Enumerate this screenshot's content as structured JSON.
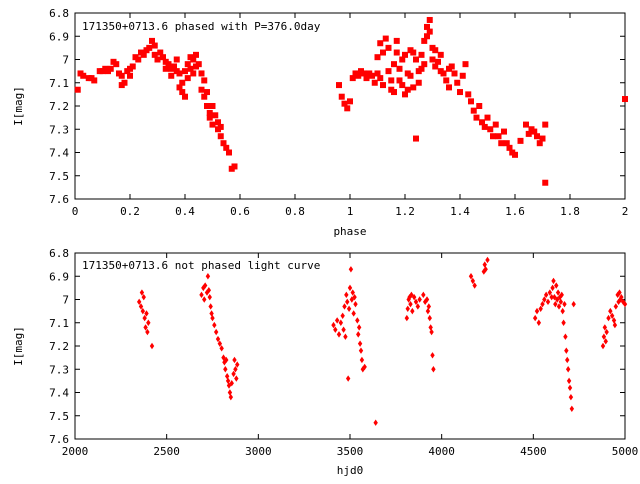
{
  "colors": {
    "points": "#ff0000",
    "axes": "#000000",
    "background": "#ffffff"
  },
  "chart_data": [
    {
      "type": "scatter",
      "title": "171350+0713.6 phased with P=376.0day",
      "xlabel": "phase",
      "ylabel": "I[mag]",
      "xlim": [
        0,
        2
      ],
      "ylim": [
        7.6,
        6.8
      ],
      "y_inverted": true,
      "xticks": [
        "0",
        "0.2",
        "0.4",
        "0.6",
        "0.8",
        "1",
        "1.2",
        "1.4",
        "1.6",
        "1.8",
        "2"
      ],
      "yticks": [
        "6.8",
        "6.9",
        "7",
        "7.1",
        "7.2",
        "7.3",
        "7.4",
        "7.5",
        "7.6"
      ],
      "grid": false,
      "marker": "filled-square",
      "points": [
        [
          0.01,
          7.13
        ],
        [
          0.02,
          7.06
        ],
        [
          0.03,
          7.07
        ],
        [
          0.05,
          7.08
        ],
        [
          0.06,
          7.08
        ],
        [
          0.07,
          7.09
        ],
        [
          0.09,
          7.05
        ],
        [
          0.1,
          7.05
        ],
        [
          0.11,
          7.04
        ],
        [
          0.12,
          7.05
        ],
        [
          0.13,
          7.04
        ],
        [
          0.14,
          7.01
        ],
        [
          0.15,
          7.02
        ],
        [
          0.16,
          7.06
        ],
        [
          0.17,
          7.07
        ],
        [
          0.17,
          7.11
        ],
        [
          0.18,
          7.1
        ],
        [
          0.19,
          7.05
        ],
        [
          0.2,
          7.04
        ],
        [
          0.2,
          7.07
        ],
        [
          0.21,
          7.03
        ],
        [
          0.22,
          6.99
        ],
        [
          0.23,
          7.0
        ],
        [
          0.24,
          6.97
        ],
        [
          0.25,
          6.98
        ],
        [
          0.26,
          6.96
        ],
        [
          0.27,
          6.95
        ],
        [
          0.28,
          6.92
        ],
        [
          0.29,
          6.94
        ],
        [
          0.29,
          6.98
        ],
        [
          0.3,
          7.0
        ],
        [
          0.31,
          6.97
        ],
        [
          0.32,
          6.99
        ],
        [
          0.33,
          7.01
        ],
        [
          0.33,
          7.04
        ],
        [
          0.34,
          7.02
        ],
        [
          0.35,
          7.04
        ],
        [
          0.35,
          7.07
        ],
        [
          0.36,
          7.03
        ],
        [
          0.37,
          7.0
        ],
        [
          0.37,
          7.05
        ],
        [
          0.38,
          7.06
        ],
        [
          0.38,
          7.12
        ],
        [
          0.39,
          7.1
        ],
        [
          0.39,
          7.14
        ],
        [
          0.4,
          7.05
        ],
        [
          0.4,
          7.16
        ],
        [
          0.41,
          7.08
        ],
        [
          0.41,
          7.02
        ],
        [
          0.42,
          6.99
        ],
        [
          0.42,
          7.04
        ],
        [
          0.43,
          7.06
        ],
        [
          0.43,
          7.0
        ],
        [
          0.44,
          6.98
        ],
        [
          0.44,
          7.03
        ],
        [
          0.45,
          7.02
        ],
        [
          0.46,
          7.06
        ],
        [
          0.46,
          7.13
        ],
        [
          0.47,
          7.16
        ],
        [
          0.47,
          7.09
        ],
        [
          0.48,
          7.2
        ],
        [
          0.48,
          7.14
        ],
        [
          0.49,
          7.23
        ],
        [
          0.49,
          7.25
        ],
        [
          0.5,
          7.2
        ],
        [
          0.5,
          7.28
        ],
        [
          0.51,
          7.24
        ],
        [
          0.52,
          7.27
        ],
        [
          0.52,
          7.3
        ],
        [
          0.53,
          7.33
        ],
        [
          0.53,
          7.29
        ],
        [
          0.54,
          7.36
        ],
        [
          0.55,
          7.38
        ],
        [
          0.56,
          7.4
        ],
        [
          0.57,
          7.47
        ],
        [
          0.58,
          7.46
        ],
        [
          0.96,
          7.11
        ],
        [
          0.97,
          7.16
        ],
        [
          0.98,
          7.19
        ],
        [
          0.99,
          7.21
        ],
        [
          1.0,
          7.18
        ],
        [
          1.01,
          7.08
        ],
        [
          1.02,
          7.06
        ],
        [
          1.03,
          7.07
        ],
        [
          1.04,
          7.05
        ],
        [
          1.05,
          7.06
        ],
        [
          1.06,
          7.08
        ],
        [
          1.07,
          7.06
        ],
        [
          1.08,
          7.07
        ],
        [
          1.09,
          7.1
        ],
        [
          1.1,
          7.06
        ],
        [
          1.1,
          6.99
        ],
        [
          1.11,
          6.93
        ],
        [
          1.11,
          7.08
        ],
        [
          1.12,
          7.11
        ],
        [
          1.12,
          6.97
        ],
        [
          1.13,
          6.91
        ],
        [
          1.14,
          6.95
        ],
        [
          1.14,
          7.05
        ],
        [
          1.15,
          7.09
        ],
        [
          1.15,
          7.13
        ],
        [
          1.16,
          7.14
        ],
        [
          1.16,
          7.02
        ],
        [
          1.17,
          6.97
        ],
        [
          1.17,
          6.92
        ],
        [
          1.18,
          7.04
        ],
        [
          1.18,
          7.09
        ],
        [
          1.19,
          7.11
        ],
        [
          1.19,
          7.0
        ],
        [
          1.2,
          7.15
        ],
        [
          1.2,
          6.98
        ],
        [
          1.21,
          7.06
        ],
        [
          1.21,
          7.13
        ],
        [
          1.22,
          7.07
        ],
        [
          1.22,
          6.96
        ],
        [
          1.23,
          6.97
        ],
        [
          1.23,
          7.12
        ],
        [
          1.24,
          7.0
        ],
        [
          1.24,
          7.34
        ],
        [
          1.25,
          7.05
        ],
        [
          1.25,
          7.1
        ],
        [
          1.26,
          6.98
        ],
        [
          1.26,
          7.04
        ],
        [
          1.27,
          6.92
        ],
        [
          1.27,
          7.02
        ],
        [
          1.28,
          6.9
        ],
        [
          1.28,
          6.86
        ],
        [
          1.29,
          6.83
        ],
        [
          1.29,
          6.88
        ],
        [
          1.3,
          6.95
        ],
        [
          1.3,
          7.0
        ],
        [
          1.31,
          7.03
        ],
        [
          1.31,
          6.96
        ],
        [
          1.32,
          7.01
        ],
        [
          1.33,
          7.05
        ],
        [
          1.33,
          6.98
        ],
        [
          1.34,
          7.06
        ],
        [
          1.35,
          7.09
        ],
        [
          1.36,
          7.04
        ],
        [
          1.36,
          7.12
        ],
        [
          1.37,
          7.03
        ],
        [
          1.38,
          7.06
        ],
        [
          1.39,
          7.1
        ],
        [
          1.4,
          7.14
        ],
        [
          1.41,
          7.07
        ],
        [
          1.42,
          7.02
        ],
        [
          1.43,
          7.15
        ],
        [
          1.44,
          7.18
        ],
        [
          1.45,
          7.22
        ],
        [
          1.46,
          7.25
        ],
        [
          1.47,
          7.2
        ],
        [
          1.48,
          7.27
        ],
        [
          1.49,
          7.29
        ],
        [
          1.5,
          7.25
        ],
        [
          1.51,
          7.3
        ],
        [
          1.52,
          7.33
        ],
        [
          1.53,
          7.28
        ],
        [
          1.54,
          7.33
        ],
        [
          1.55,
          7.36
        ],
        [
          1.56,
          7.31
        ],
        [
          1.57,
          7.36
        ],
        [
          1.58,
          7.38
        ],
        [
          1.59,
          7.4
        ],
        [
          1.6,
          7.41
        ],
        [
          1.62,
          7.35
        ],
        [
          1.64,
          7.28
        ],
        [
          1.65,
          7.32
        ],
        [
          1.66,
          7.3
        ],
        [
          1.67,
          7.31
        ],
        [
          1.68,
          7.33
        ],
        [
          1.69,
          7.36
        ],
        [
          1.7,
          7.34
        ],
        [
          1.71,
          7.28
        ],
        [
          1.71,
          7.53
        ],
        [
          2.0,
          7.17
        ]
      ]
    },
    {
      "type": "scatter",
      "title": "171350+0713.6 not phased light curve",
      "xlabel": "hjd0",
      "ylabel": "I[mag]",
      "xlim": [
        2000,
        5000
      ],
      "ylim": [
        7.6,
        6.8
      ],
      "y_inverted": true,
      "xticks": [
        "2000",
        "2500",
        "3000",
        "3500",
        "4000",
        "4500",
        "5000"
      ],
      "yticks": [
        "6.8",
        "6.9",
        "7",
        "7.1",
        "7.2",
        "7.3",
        "7.4",
        "7.5",
        "7.6"
      ],
      "grid": false,
      "marker": "filled-diamond",
      "points": [
        [
          2350,
          7.01
        ],
        [
          2360,
          7.03
        ],
        [
          2365,
          6.97
        ],
        [
          2370,
          7.05
        ],
        [
          2375,
          6.99
        ],
        [
          2380,
          7.08
        ],
        [
          2385,
          7.12
        ],
        [
          2390,
          7.06
        ],
        [
          2395,
          7.14
        ],
        [
          2400,
          7.1
        ],
        [
          2420,
          7.2
        ],
        [
          2690,
          6.98
        ],
        [
          2700,
          6.95
        ],
        [
          2705,
          7.0
        ],
        [
          2710,
          6.94
        ],
        [
          2720,
          6.97
        ],
        [
          2725,
          6.9
        ],
        [
          2730,
          6.96
        ],
        [
          2735,
          6.99
        ],
        [
          2740,
          7.03
        ],
        [
          2745,
          7.06
        ],
        [
          2750,
          7.08
        ],
        [
          2760,
          7.11
        ],
        [
          2770,
          7.14
        ],
        [
          2780,
          7.17
        ],
        [
          2790,
          7.19
        ],
        [
          2800,
          7.21
        ],
        [
          2810,
          7.25
        ],
        [
          2815,
          7.27
        ],
        [
          2820,
          7.3
        ],
        [
          2825,
          7.26
        ],
        [
          2830,
          7.33
        ],
        [
          2835,
          7.35
        ],
        [
          2840,
          7.37
        ],
        [
          2845,
          7.4
        ],
        [
          2850,
          7.42
        ],
        [
          2855,
          7.36
        ],
        [
          2865,
          7.32
        ],
        [
          2870,
          7.26
        ],
        [
          2875,
          7.3
        ],
        [
          2880,
          7.34
        ],
        [
          2885,
          7.28
        ],
        [
          3410,
          7.11
        ],
        [
          3420,
          7.13
        ],
        [
          3430,
          7.09
        ],
        [
          3440,
          7.15
        ],
        [
          3450,
          7.1
        ],
        [
          3460,
          7.07
        ],
        [
          3465,
          7.13
        ],
        [
          3470,
          7.03
        ],
        [
          3475,
          7.16
        ],
        [
          3480,
          6.98
        ],
        [
          3485,
          7.01
        ],
        [
          3490,
          7.34
        ],
        [
          3495,
          7.04
        ],
        [
          3500,
          6.95
        ],
        [
          3505,
          6.87
        ],
        [
          3510,
          7.0
        ],
        [
          3515,
          6.97
        ],
        [
          3520,
          7.06
        ],
        [
          3525,
          6.99
        ],
        [
          3530,
          7.02
        ],
        [
          3540,
          7.09
        ],
        [
          3545,
          7.15
        ],
        [
          3550,
          7.12
        ],
        [
          3555,
          7.19
        ],
        [
          3560,
          7.22
        ],
        [
          3565,
          7.26
        ],
        [
          3570,
          7.3
        ],
        [
          3580,
          7.29
        ],
        [
          3640,
          7.53
        ],
        [
          3810,
          7.08
        ],
        [
          3815,
          7.04
        ],
        [
          3820,
          7.0
        ],
        [
          3825,
          6.99
        ],
        [
          3830,
          7.02
        ],
        [
          3835,
          6.98
        ],
        [
          3840,
          7.05
        ],
        [
          3850,
          6.99
        ],
        [
          3860,
          7.01
        ],
        [
          3870,
          7.03
        ],
        [
          3880,
          7.0
        ],
        [
          3900,
          6.98
        ],
        [
          3910,
          7.01
        ],
        [
          3920,
          7.0
        ],
        [
          3925,
          7.05
        ],
        [
          3930,
          7.03
        ],
        [
          3935,
          7.08
        ],
        [
          3940,
          7.12
        ],
        [
          3945,
          7.14
        ],
        [
          3950,
          7.24
        ],
        [
          3955,
          7.3
        ],
        [
          4160,
          6.9
        ],
        [
          4170,
          6.92
        ],
        [
          4180,
          6.94
        ],
        [
          4230,
          6.88
        ],
        [
          4235,
          6.85
        ],
        [
          4240,
          6.87
        ],
        [
          4250,
          6.83
        ],
        [
          4510,
          7.08
        ],
        [
          4520,
          7.05
        ],
        [
          4530,
          7.1
        ],
        [
          4540,
          7.04
        ],
        [
          4550,
          7.02
        ],
        [
          4560,
          7.0
        ],
        [
          4570,
          6.98
        ],
        [
          4580,
          7.01
        ],
        [
          4590,
          6.97
        ],
        [
          4600,
          6.99
        ],
        [
          4605,
          6.95
        ],
        [
          4610,
          6.92
        ],
        [
          4615,
          6.99
        ],
        [
          4620,
          7.02
        ],
        [
          4625,
          6.94
        ],
        [
          4630,
          7.0
        ],
        [
          4635,
          6.97
        ],
        [
          4640,
          7.03
        ],
        [
          4645,
          6.99
        ],
        [
          4650,
          7.01
        ],
        [
          4655,
          6.98
        ],
        [
          4660,
          7.05
        ],
        [
          4665,
          7.1
        ],
        [
          4670,
          7.02
        ],
        [
          4675,
          7.16
        ],
        [
          4680,
          7.22
        ],
        [
          4685,
          7.26
        ],
        [
          4690,
          7.3
        ],
        [
          4695,
          7.35
        ],
        [
          4700,
          7.38
        ],
        [
          4705,
          7.42
        ],
        [
          4710,
          7.47
        ],
        [
          4720,
          7.02
        ],
        [
          4880,
          7.2
        ],
        [
          4885,
          7.16
        ],
        [
          4890,
          7.12
        ],
        [
          4895,
          7.18
        ],
        [
          4900,
          7.14
        ],
        [
          4910,
          7.08
        ],
        [
          4920,
          7.05
        ],
        [
          4930,
          7.07
        ],
        [
          4940,
          7.09
        ],
        [
          4945,
          7.11
        ],
        [
          4950,
          7.03
        ],
        [
          4960,
          6.98
        ],
        [
          4965,
          7.01
        ],
        [
          4970,
          6.97
        ],
        [
          4975,
          7.0
        ],
        [
          4980,
          6.99
        ],
        [
          4990,
          7.01
        ],
        [
          5000,
          7.02
        ]
      ]
    }
  ]
}
